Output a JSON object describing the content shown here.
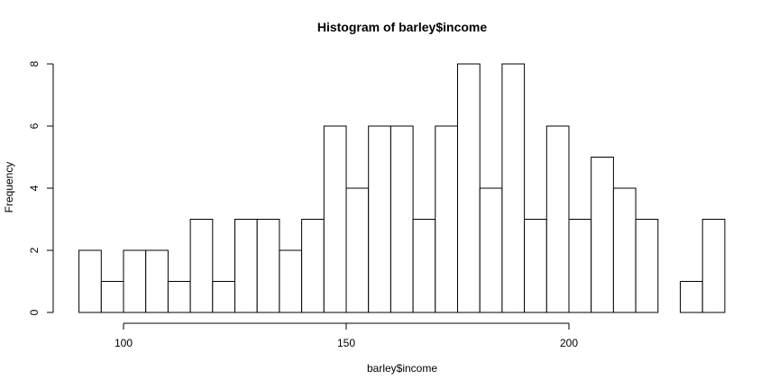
{
  "chart_data": {
    "type": "bar",
    "title": "Histogram of barley$income",
    "xlabel": "barley$income",
    "ylabel": "Frequency",
    "bin_width": 5,
    "bins": [
      {
        "start": 90,
        "end": 95,
        "count": 2
      },
      {
        "start": 95,
        "end": 100,
        "count": 1
      },
      {
        "start": 100,
        "end": 105,
        "count": 2
      },
      {
        "start": 105,
        "end": 110,
        "count": 2
      },
      {
        "start": 110,
        "end": 115,
        "count": 1
      },
      {
        "start": 115,
        "end": 120,
        "count": 3
      },
      {
        "start": 120,
        "end": 125,
        "count": 1
      },
      {
        "start": 125,
        "end": 130,
        "count": 3
      },
      {
        "start": 130,
        "end": 135,
        "count": 3
      },
      {
        "start": 135,
        "end": 140,
        "count": 2
      },
      {
        "start": 140,
        "end": 145,
        "count": 3
      },
      {
        "start": 145,
        "end": 150,
        "count": 6
      },
      {
        "start": 150,
        "end": 155,
        "count": 4
      },
      {
        "start": 155,
        "end": 160,
        "count": 6
      },
      {
        "start": 160,
        "end": 165,
        "count": 6
      },
      {
        "start": 165,
        "end": 170,
        "count": 3
      },
      {
        "start": 170,
        "end": 175,
        "count": 6
      },
      {
        "start": 175,
        "end": 180,
        "count": 8
      },
      {
        "start": 180,
        "end": 185,
        "count": 4
      },
      {
        "start": 185,
        "end": 190,
        "count": 8
      },
      {
        "start": 190,
        "end": 195,
        "count": 3
      },
      {
        "start": 195,
        "end": 200,
        "count": 6
      },
      {
        "start": 200,
        "end": 205,
        "count": 3
      },
      {
        "start": 205,
        "end": 210,
        "count": 5
      },
      {
        "start": 210,
        "end": 215,
        "count": 4
      },
      {
        "start": 215,
        "end": 220,
        "count": 3
      },
      {
        "start": 220,
        "end": 225,
        "count": 0
      },
      {
        "start": 225,
        "end": 230,
        "count": 1
      },
      {
        "start": 230,
        "end": 235,
        "count": 3
      }
    ],
    "xticks": [
      "100",
      "150",
      "200"
    ],
    "yticks": [
      "0",
      "2",
      "4",
      "6",
      "8"
    ],
    "xlim": [
      90,
      235
    ],
    "ylim": [
      0,
      8
    ],
    "grid": false,
    "bar_fill": "#ffffff",
    "bar_stroke": "#000000"
  }
}
